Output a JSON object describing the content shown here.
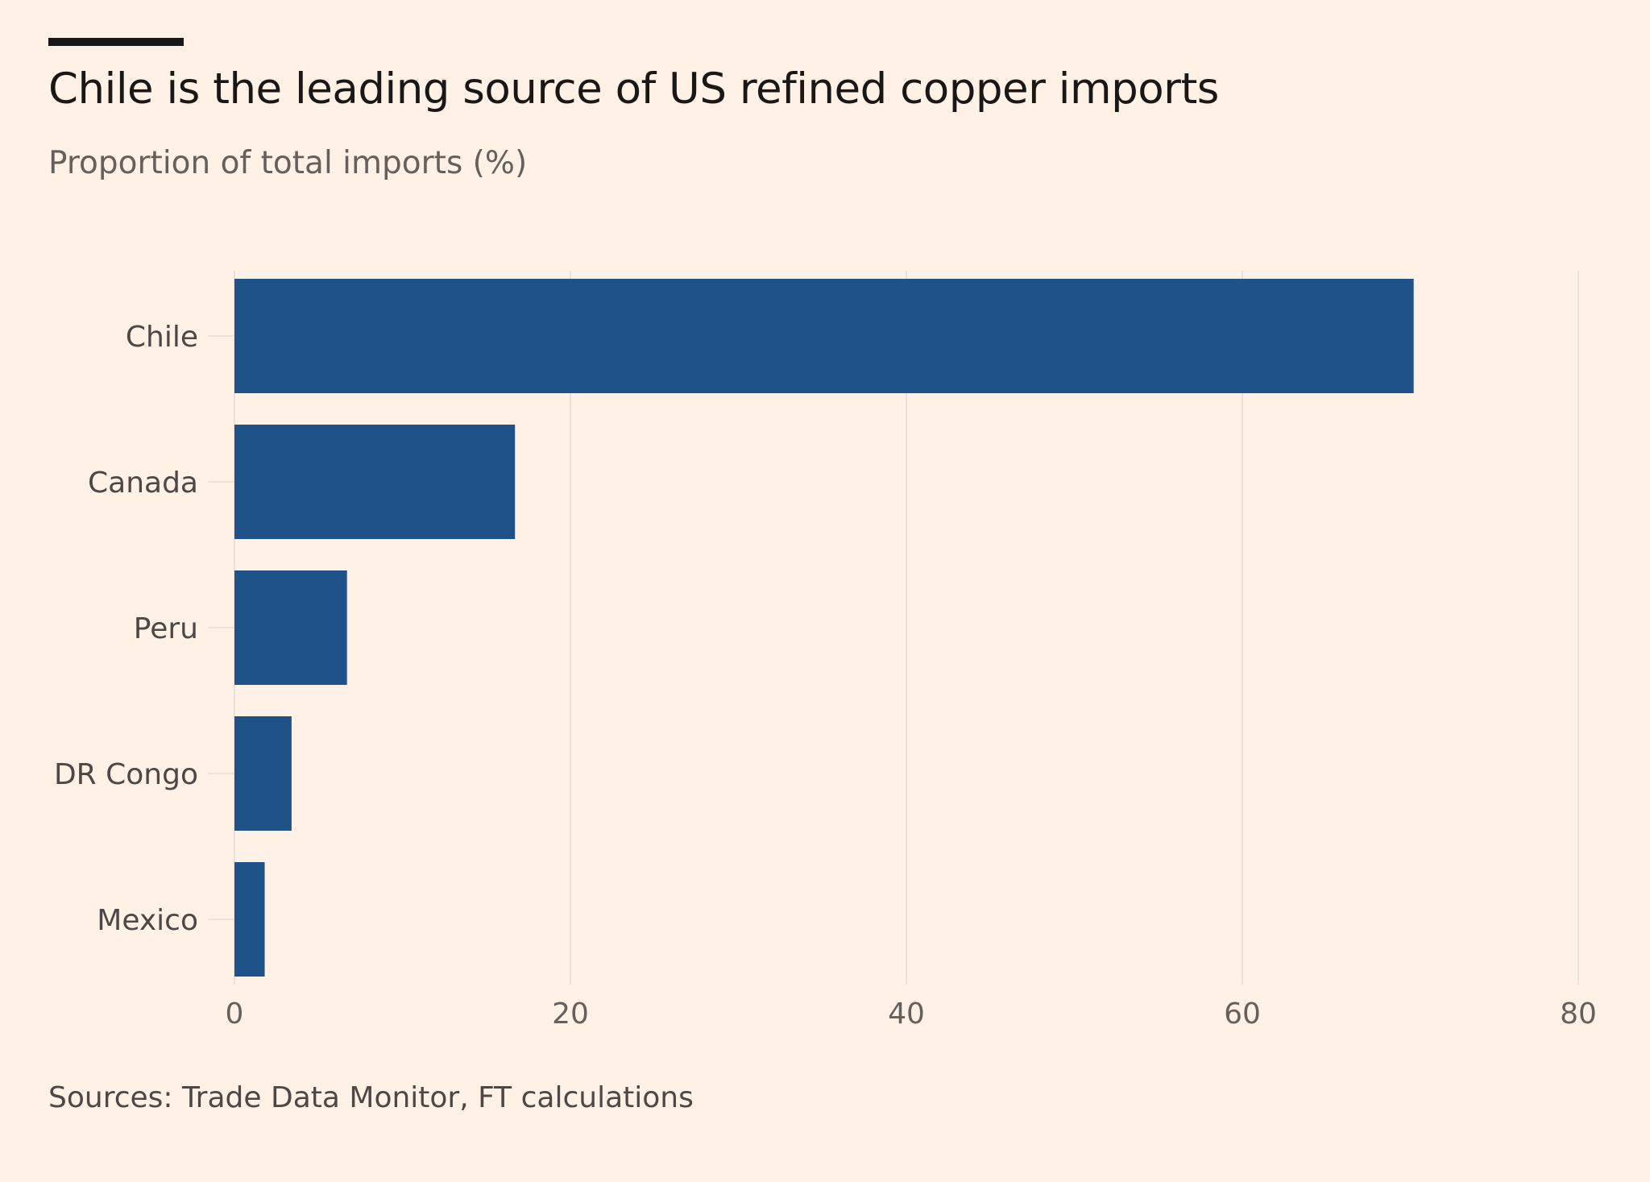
{
  "header": {
    "title": "Chile is the leading source of US refined copper imports",
    "subtitle": "Proportion of total imports (%)"
  },
  "footer": {
    "source": "Sources: Trade Data Monitor, FT calculations"
  },
  "colors": {
    "bar": "#1F5289",
    "background": "#FFF1E5",
    "grid": "#ECE1D8"
  },
  "chart_data": {
    "type": "bar",
    "orientation": "horizontal",
    "title": "Chile is the leading source of US refined copper imports",
    "subtitle": "Proportion of total imports (%)",
    "categories": [
      "Chile",
      "Canada",
      "Peru",
      "DR Congo",
      "Mexico"
    ],
    "values": [
      70.2,
      16.7,
      6.7,
      3.4,
      1.8
    ],
    "xlim": [
      0,
      80
    ],
    "xticks": [
      0,
      20,
      40,
      60,
      80
    ],
    "xlabel": "",
    "ylabel": "",
    "grid": true
  }
}
